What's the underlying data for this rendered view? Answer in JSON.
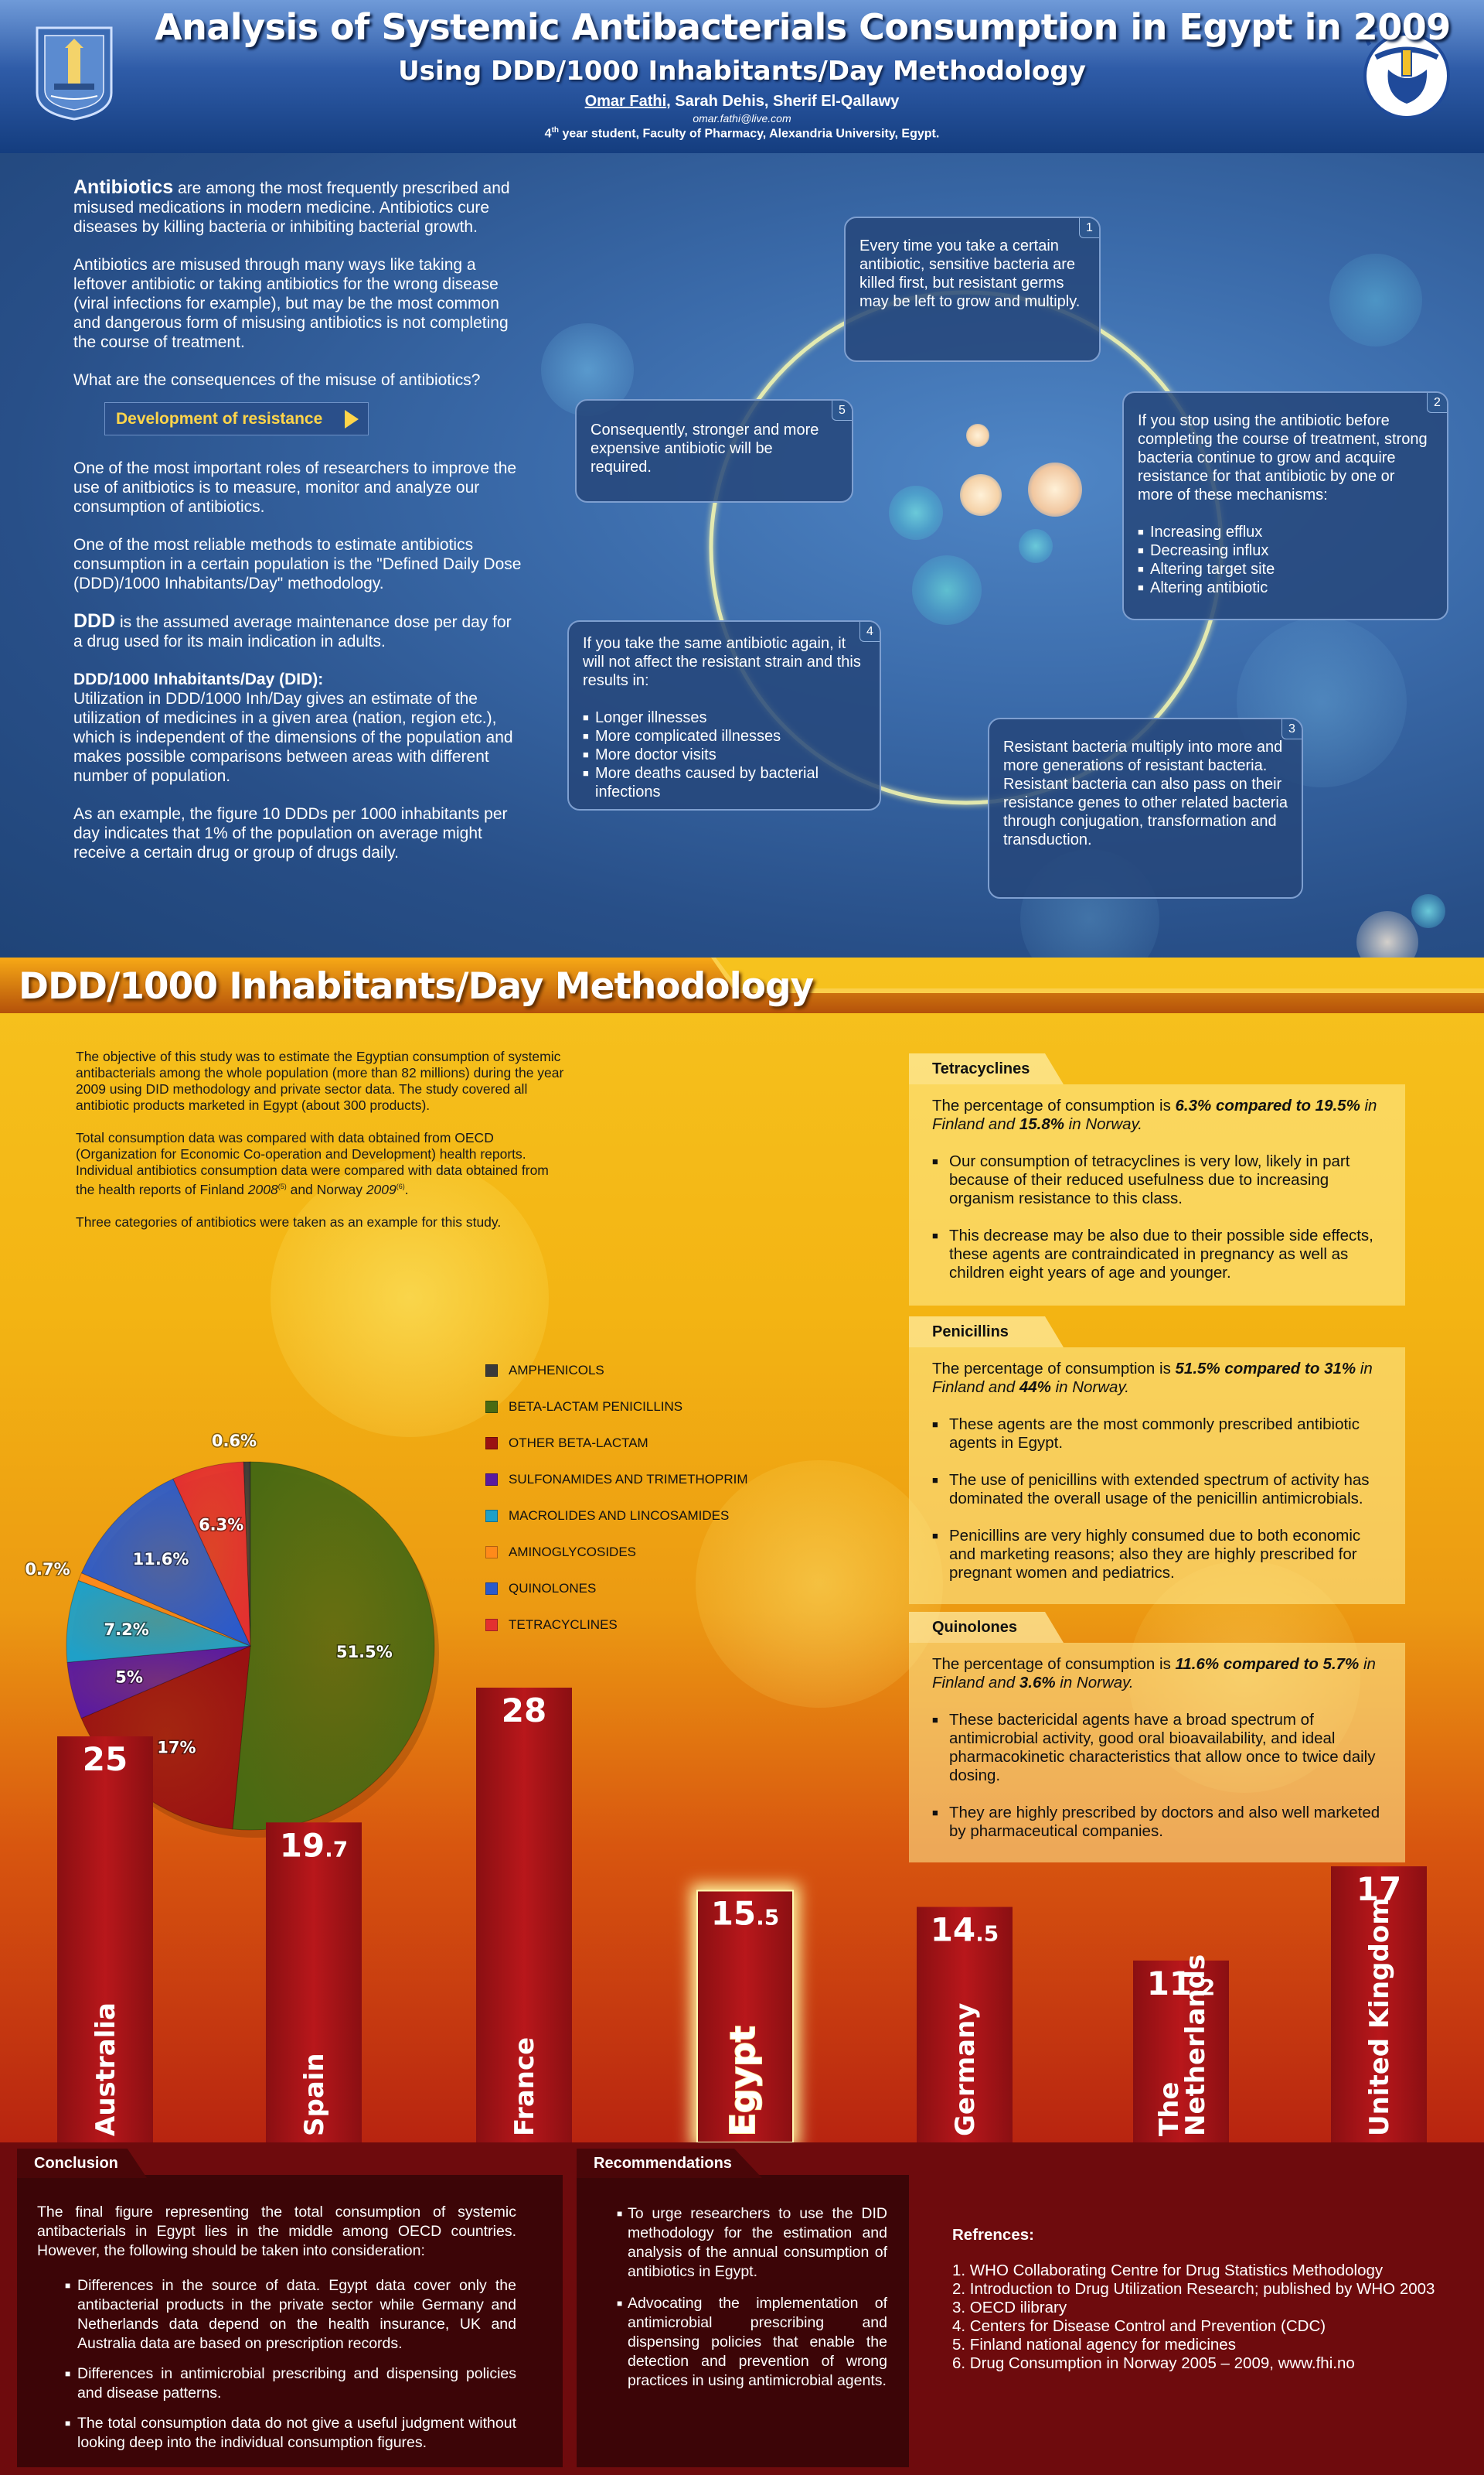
{
  "header": {
    "title": "Analysis of Systemic Antibacterials Consumption in Egypt in 2009",
    "subtitle": "Using DDD/1000 Inhabitants/Day Methodology",
    "author_first": "Omar Fathi",
    "author_rest": ", Sarah Dehis, Sherif El-Qallawy",
    "email": "omar.fathi@live.com",
    "affil_num": "4",
    "affil_sup": "th",
    "affil_rest": " year student, Faculty of Pharmacy, Alexandria University, Egypt."
  },
  "intro": {
    "p1_bold": "Antibiotics",
    "p1_rest": " are among the most frequently prescribed and misused medications in modern medicine. Antibiotics cure diseases by killing bacteria or inhibiting bacterial growth.",
    "p2": "Antibiotics are misused through many ways like taking a leftover antibiotic or taking antibiotics for the wrong disease (viral infections for example), but may be the most common and dangerous form of misusing antibiotics is not completing the course of treatment.",
    "p3": "What are the consequences of the misuse of antibiotics?",
    "dev_res": "Development of resistance",
    "p4": "One of the most important roles of researchers to improve the use of anitbiotics is to measure, monitor and analyze our consumption of antibiotics.",
    "p5": "One of the most reliable methods to estimate antibiotics consumption in a certain population is the \"Defined Daily Dose (DDD)/1000 Inhabitants/Day\" methodology.",
    "p6_bold": "DDD",
    "p6_rest": " is the assumed average maintenance dose per day for a drug used for its main indication in adults.",
    "p7_bold": "DDD/1000 Inhabitants/Day (DID):",
    "p7_rest": "Utilization in DDD/1000 Inh/Day gives an estimate of the utilization of medicines in a given area (nation, region etc.), which is independent of the dimensions of the population and makes possible comparisons between areas with different number of population.",
    "p8": "As an example, the figure 10 DDDs per 1000 inhabitants per day indicates that 1% of the population on average might receive a certain drug or group of drugs daily."
  },
  "cycle": {
    "box1": {
      "num": "1",
      "text": "Every time you take a certain antibiotic, sensitive bacteria are killed first, but resistant germs may be left to grow and multiply."
    },
    "box2": {
      "num": "2",
      "text": "If you stop using the antibiotic before completing the course of treatment, strong bacteria continue to grow and acquire resistance for that antibiotic by one or more of these mechanisms:",
      "items": [
        "Increasing efflux",
        "Decreasing influx",
        "Altering target site",
        "Altering antibiotic"
      ]
    },
    "box3": {
      "num": "3",
      "text": "Resistant bacteria multiply into more and more generations of resistant bacteria. Resistant bacteria can also pass on their resistance genes to other related bacteria through conjugation, transformation and transduction."
    },
    "box4": {
      "num": "4",
      "text": "If you take the same antibiotic again, it will not affect the resistant strain and this results in:",
      "items": [
        "Longer illnesses",
        "More complicated illnesses",
        "More doctor visits",
        "More deaths caused by bacterial infections"
      ]
    },
    "box5": {
      "num": "5",
      "text": "Consequently, stronger and more expensive antibiotic will be required."
    }
  },
  "method": {
    "title": "DDD/1000 Inhabitants/Day Methodology",
    "obj1": "The objective of this study was to estimate the Egyptian consumption of systemic antibacterials among the whole population (more than 82 millions) during the year 2009 using DID methodology and private sector data. The study covered all antibiotic products marketed in Egypt (about 300 products).",
    "obj2_a": "Total consumption data was compared with data obtained from OECD (Organization for Economic Co-operation and Development) health reports. Individual antibiotics consumption data were compared with data obtained from the health reports of Finland ",
    "obj2_finland_year": "2008",
    "obj2_ref1": "(5)",
    "obj2_b": " and Norway ",
    "obj2_norway_year": "2009",
    "obj2_ref2": "(6)",
    "obj2_c": ".",
    "obj3": "Three categories of antibiotics were taken as an example for this study."
  },
  "chart_data": [
    {
      "type": "pie",
      "categories": [
        "AMPHENICOLS",
        "BETA-LACTAM PENICILLINS",
        "OTHER BETA-LACTAM",
        "SULFONAMIDES AND TRIMETHOPRIM",
        "MACROLIDES AND LINCOSAMIDES",
        "AMINOGLYCOSIDES",
        "QUINOLONES",
        "TETRACYCLINES"
      ],
      "values": [
        0.6,
        51.5,
        17,
        5,
        7.2,
        0.7,
        11.6,
        6.3
      ],
      "labels": [
        "0.6%",
        "51.5%",
        "17%",
        "5%",
        "7.2%",
        "0.7%",
        "11.6%",
        "6.3%"
      ],
      "colors": [
        "#3a3a3a",
        "#4a6a12",
        "#9a1212",
        "#5a1aa0",
        "#1fa0c8",
        "#ff8a1a",
        "#2a5acc",
        "#e33030"
      ],
      "legend": "right"
    },
    {
      "type": "bar",
      "categories": [
        "Australia",
        "Spain",
        "France",
        "Egypt",
        "Germany",
        "The Netherlands",
        "United Kingdom"
      ],
      "values": [
        25,
        19.7,
        28,
        15.5,
        14.5,
        11.2,
        17
      ],
      "value_labels": [
        {
          "main": "25",
          "dec": ""
        },
        {
          "main": "19",
          "dec": ".7"
        },
        {
          "main": "28",
          "dec": ""
        },
        {
          "main": "15",
          "dec": ".5"
        },
        {
          "main": "14",
          "dec": ".5"
        },
        {
          "main": "11",
          "dec": ".2"
        },
        {
          "main": "17",
          "dec": ""
        }
      ],
      "highlight": "Egypt"
    }
  ],
  "tetra": {
    "tab": "Tetracyclines",
    "p_a": "The percentage of consumption is ",
    "p_v": "6.3% compared to 19.5%",
    "p_b": " in Finland and ",
    "p_v2": "15.8%",
    "p_c": " in Norway.",
    "items": [
      "Our consumption of tetracyclines is very low, likely in part because of their reduced usefulness due to increasing organism resistance to this class.",
      "This decrease may be also due to their possible side effects, these agents are contraindicated in pregnancy as well as children eight years of age and younger."
    ]
  },
  "penic": {
    "tab": "Penicillins",
    "p_a": "The percentage of consumption is ",
    "p_v": "51.5% compared to 31%",
    "p_b": " in Finland and ",
    "p_v2": "44%",
    "p_c": " in Norway.",
    "items": [
      "These agents are the most commonly prescribed antibiotic agents in Egypt.",
      "The use of penicillins with extended spectrum of activity has dominated the overall usage of the penicillin antimicrobials.",
      "Penicillins are very highly consumed due to both economic and marketing reasons; also they are highly prescribed for pregnant women and pediatrics."
    ]
  },
  "quino": {
    "tab": "Quinolones",
    "p_a": "The percentage of consumption is ",
    "p_v": "11.6% compared to 5.7%",
    "p_b": " in Finland and ",
    "p_v2": "3.6%",
    "p_c": " in Norway.",
    "items": [
      "These bactericidal agents have a broad spectrum of antimicrobial activity, good oral bioavailability, and ideal pharmacokinetic characteristics that allow once to twice daily dosing.",
      "They are highly prescribed by doctors and also well marketed by pharmaceutical companies."
    ]
  },
  "conclusion": {
    "tab": "Conclusion",
    "text": "The final figure representing the total consumption of systemic antibacterials in Egypt lies in the middle among OECD countries. However, the following should be taken into consideration:",
    "items": [
      "Differences in the source of data. Egypt data cover only the antibacterial products in the private sector while Germany and Netherlands data depend on the health insurance, UK and Australia data are based on prescription records.",
      "Differences in antimicrobial prescribing and dispensing policies and disease patterns.",
      "The total consumption data do not give a useful judgment without looking deep into the individual consumption figures."
    ]
  },
  "recommendations": {
    "tab": "Recommendations",
    "items": [
      "To urge researchers to use the DID methodology for the estimation and analysis of the annual consumption of antibiotics in Egypt.",
      "Advocating the implementation of antimicrobial prescribing and dispensing policies that enable the detection and prevention of wrong practices in using antimicrobial agents."
    ]
  },
  "references": {
    "title": "Refrences:",
    "items": [
      "1. WHO Collaborating Centre for Drug Statistics Methodology",
      "2. Introduction to Drug Utilization Research; published by WHO 2003",
      "3. OECD ilibrary",
      "4. Centers for Disease Control and Prevention (CDC)",
      "5. Finland national agency for medicines",
      "6. Drug Consumption in Norway 2005 – 2009, www.fhi.no"
    ]
  }
}
